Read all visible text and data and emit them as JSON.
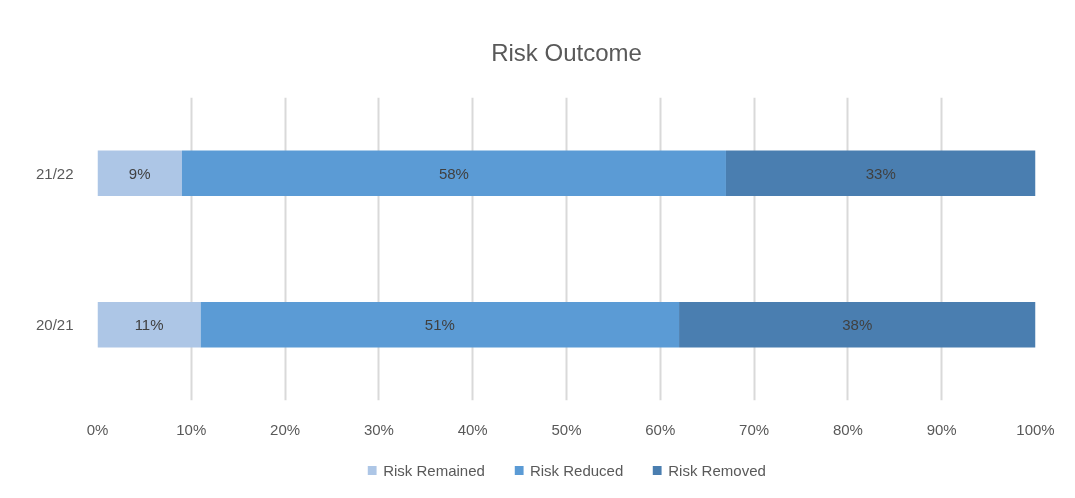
{
  "chart_data": {
    "type": "bar",
    "orientation": "horizontal",
    "stacked": true,
    "title": "Risk Outcome",
    "categories": [
      "21/22",
      "20/21"
    ],
    "series": [
      {
        "name": "Risk Remained",
        "color": "#adc6e6",
        "values": [
          9,
          11
        ],
        "value_labels": [
          "9%",
          "11%"
        ]
      },
      {
        "name": "Risk Reduced",
        "color": "#5b9bd5",
        "values": [
          58,
          51
        ],
        "value_labels": [
          "58%",
          "51%"
        ]
      },
      {
        "name": "Risk Removed",
        "color": "#4a7eb0",
        "values": [
          33,
          38
        ],
        "value_labels": [
          "33%",
          "38%"
        ]
      }
    ],
    "xlim": [
      0,
      100
    ],
    "xticks": [
      {
        "value": 0,
        "label": "0%"
      },
      {
        "value": 10,
        "label": "10%"
      },
      {
        "value": 20,
        "label": "20%"
      },
      {
        "value": 30,
        "label": "30%"
      },
      {
        "value": 40,
        "label": "40%"
      },
      {
        "value": 50,
        "label": "50%"
      },
      {
        "value": 60,
        "label": "60%"
      },
      {
        "value": 70,
        "label": "70%"
      },
      {
        "value": 80,
        "label": "80%"
      },
      {
        "value": 90,
        "label": "90%"
      },
      {
        "value": 100,
        "label": "100%"
      }
    ],
    "grid": "x",
    "legend": "bottom"
  }
}
